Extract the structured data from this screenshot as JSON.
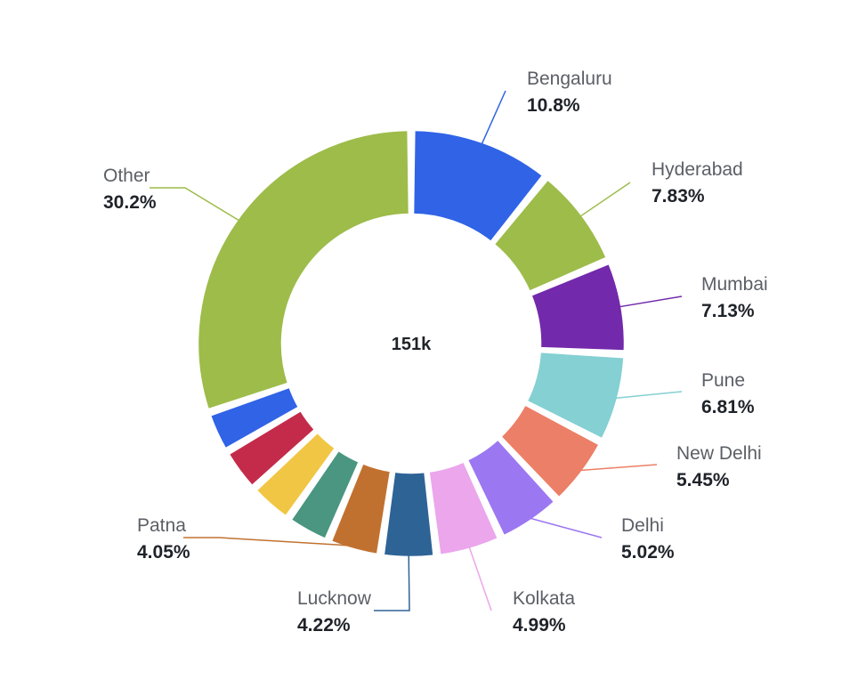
{
  "chart_data": {
    "type": "pie",
    "variant": "donut",
    "center_label": "151k",
    "slices": [
      {
        "label": "Bengaluru",
        "percent_label": "10.8%",
        "value": 10.8,
        "color": "#3063e6"
      },
      {
        "label": "Hyderabad",
        "percent_label": "7.83%",
        "value": 7.83,
        "color": "#9dbc4a"
      },
      {
        "label": "Mumbai",
        "percent_label": "7.13%",
        "value": 7.13,
        "color": "#7229ab"
      },
      {
        "label": "Pune",
        "percent_label": "6.81%",
        "value": 6.81,
        "color": "#84d0d3"
      },
      {
        "label": "New Delhi",
        "percent_label": "5.45%",
        "value": 5.45,
        "color": "#ec7f67"
      },
      {
        "label": "Delhi",
        "percent_label": "5.02%",
        "value": 5.02,
        "color": "#9c77f2"
      },
      {
        "label": "Kolkata",
        "percent_label": "4.99%",
        "value": 4.99,
        "color": "#eba6ec"
      },
      {
        "label": "Lucknow",
        "percent_label": "4.22%",
        "value": 4.22,
        "color": "#2e6396"
      },
      {
        "label": "Patna",
        "percent_label": "4.05%",
        "value": 4.05,
        "color": "#c1712f"
      },
      {
        "label": "",
        "percent_label": "",
        "value": 3.4,
        "color": "#4a9680"
      },
      {
        "label": "",
        "percent_label": "",
        "value": 3.4,
        "color": "#f1c644"
      },
      {
        "label": "",
        "percent_label": "",
        "value": 3.4,
        "color": "#c42b4a"
      },
      {
        "label": "",
        "percent_label": "",
        "value": 3.2,
        "color": "#3063e6"
      },
      {
        "label": "Other",
        "percent_label": "30.2%",
        "value": 30.2,
        "color": "#9dbc4a"
      }
    ]
  }
}
